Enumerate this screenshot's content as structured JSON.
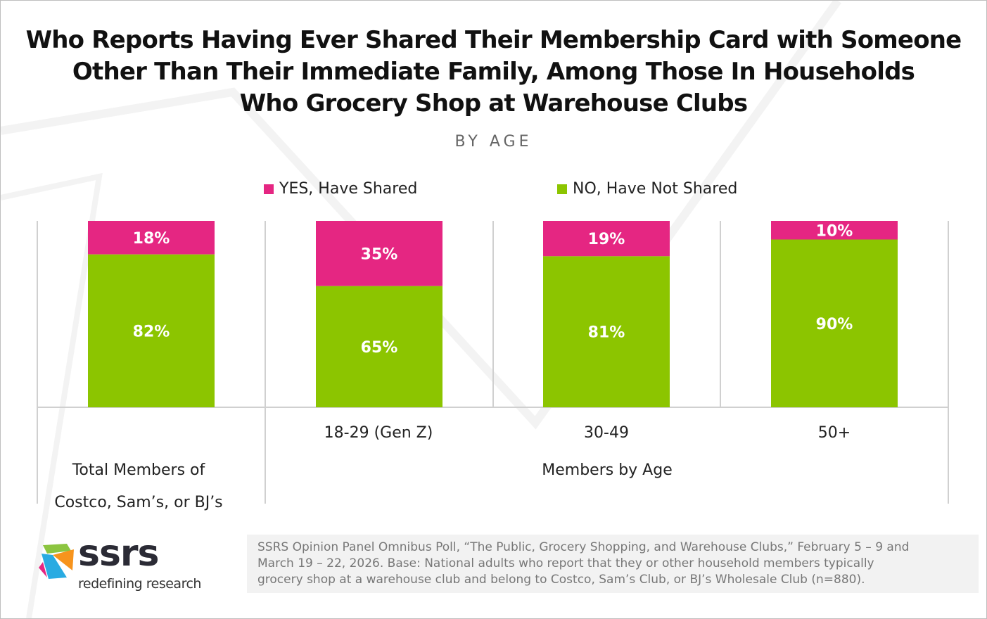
{
  "title_lines": [
    "Who Reports Having Ever Shared Their Membership Card with Someone",
    "Other Than Their Immediate Family, Among Those In Households",
    "Who Grocery Shop at Warehouse Clubs"
  ],
  "subtitle": "BY AGE",
  "colors": {
    "yes": "#e52682",
    "no": "#8cc500"
  },
  "chart_data": {
    "type": "bar",
    "stacked": true,
    "title": "Who Reports Having Ever Shared Their Membership Card with Someone Other Than Their Immediate Family, Among Those In Households Who Grocery Shop at Warehouse Clubs",
    "subtitle": "BY AGE",
    "categories": [
      "Total Members of Costco, Sam’s, or BJ’s",
      "18-29 (Gen Z)",
      "30-49",
      "50+"
    ],
    "group_labels": [
      "Total Members of Costco, Sam’s, or BJ’s",
      "Members by Age"
    ],
    "series": [
      {
        "name": "YES, Have Shared",
        "values": [
          18,
          35,
          19,
          10
        ],
        "labels": [
          "18%",
          "35%",
          "19%",
          "10%"
        ]
      },
      {
        "name": "NO, Have Not Shared",
        "values": [
          82,
          65,
          81,
          90
        ],
        "labels": [
          "82%",
          "65%",
          "81%",
          "90%"
        ]
      }
    ],
    "ylim": [
      0,
      100
    ],
    "legend": "top"
  },
  "logo": {
    "word": "ssrs",
    "tagline": "redefining research"
  },
  "footnote": [
    "SSRS Opinion Panel Omnibus Poll, “The Public, Grocery Shopping, and Warehouse Clubs,” February 5 – 9 and",
    "March 19 – 22, 2026. Base: National adults who report that they or other household members typically",
    "grocery shop at a warehouse club and belong to Costco, Sam’s Club, or BJ’s Wholesale Club (n=880)."
  ]
}
